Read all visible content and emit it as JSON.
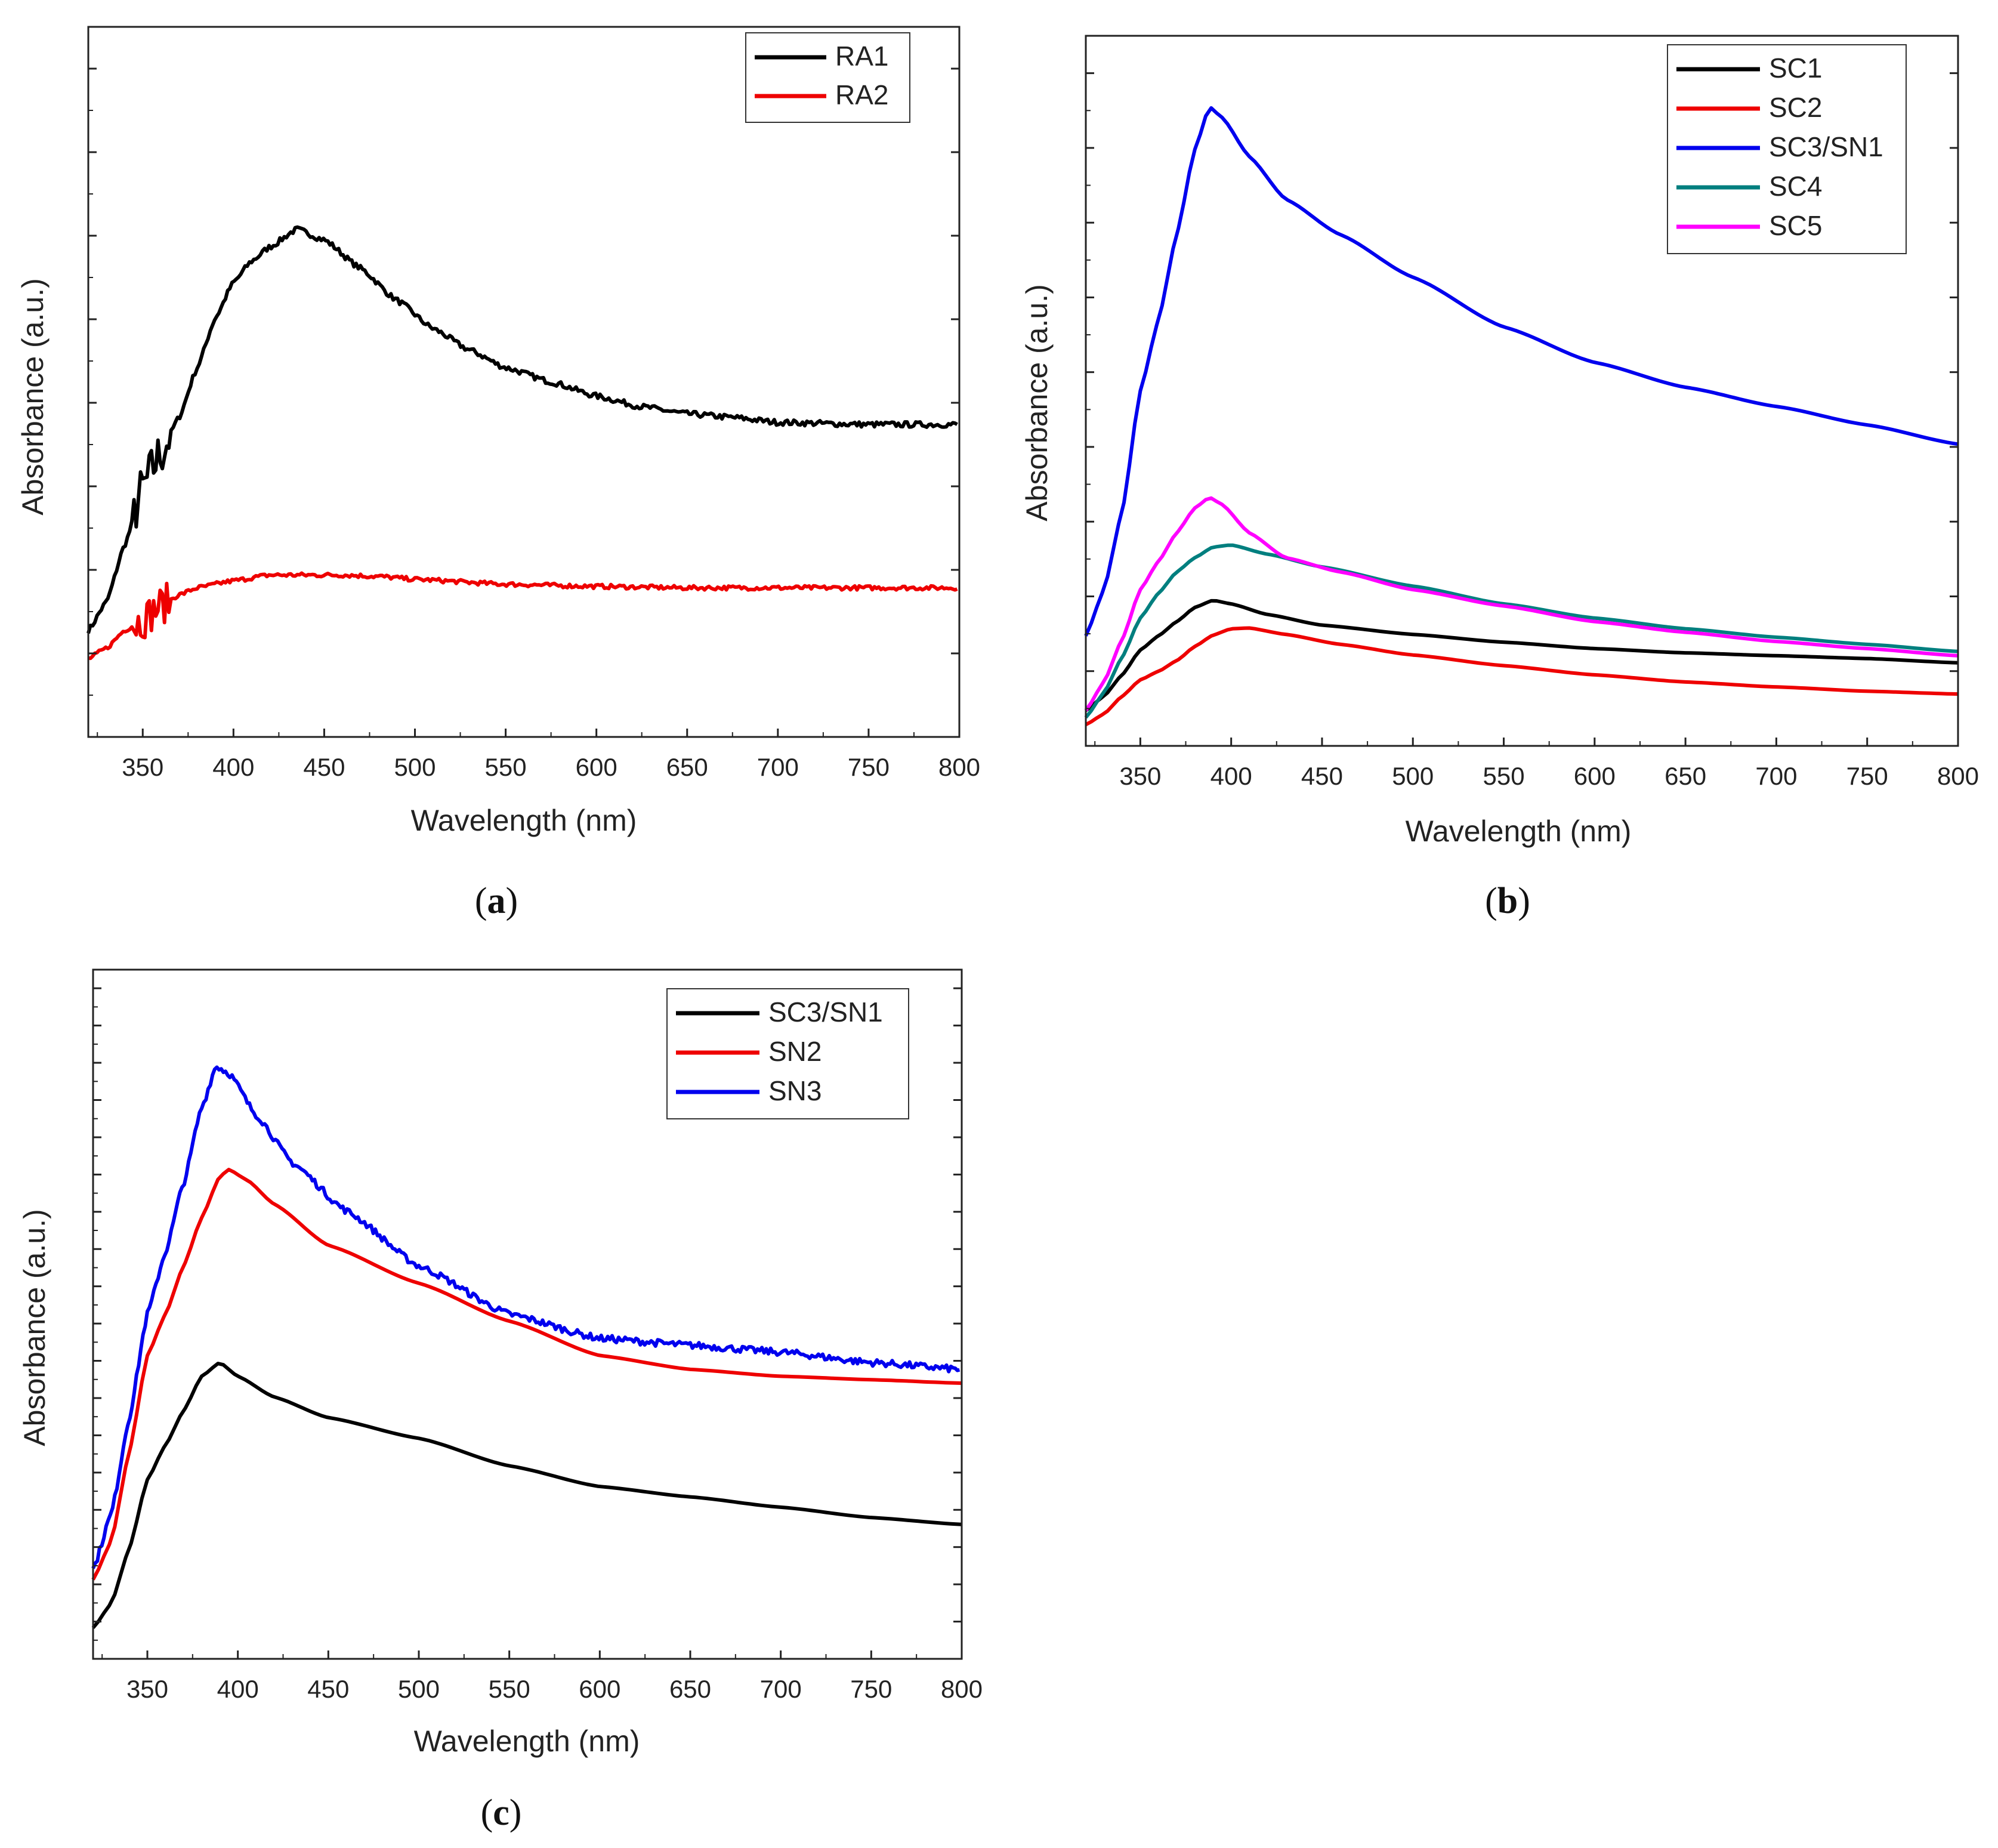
{
  "chart_data": [
    {
      "id": "a",
      "type": "line",
      "panel_label": "a",
      "xlabel": "Wavelength (nm)",
      "ylabel": "Absorbance (a.u.)",
      "xlim": [
        320,
        800
      ],
      "ylim": [
        0,
        1
      ],
      "xticks": [
        350,
        400,
        450,
        500,
        550,
        600,
        650,
        700,
        750,
        800
      ],
      "yticks_count": 8,
      "y_tick_labels_shown": false,
      "legend_position": "top-right",
      "series": [
        {
          "name": "RA1",
          "color": "#000000",
          "noise": 0.004,
          "points": [
            [
              320,
              0.15
            ],
            [
              330,
              0.19
            ],
            [
              340,
              0.27
            ],
            [
              350,
              0.35
            ],
            [
              360,
              0.4
            ],
            [
              370,
              0.45
            ],
            [
              380,
              0.52
            ],
            [
              390,
              0.59
            ],
            [
              400,
              0.64
            ],
            [
              410,
              0.67
            ],
            [
              420,
              0.69
            ],
            [
              435,
              0.715
            ],
            [
              450,
              0.7
            ],
            [
              470,
              0.66
            ],
            [
              490,
              0.615
            ],
            [
              510,
              0.575
            ],
            [
              530,
              0.545
            ],
            [
              550,
              0.52
            ],
            [
              575,
              0.5
            ],
            [
              600,
              0.48
            ],
            [
              625,
              0.465
            ],
            [
              650,
              0.455
            ],
            [
              675,
              0.45
            ],
            [
              700,
              0.443
            ],
            [
              750,
              0.44
            ],
            [
              800,
              0.44
            ]
          ]
        },
        {
          "name": "RA2",
          "color": "#ee0000",
          "noise": 0.003,
          "points": [
            [
              320,
              0.11
            ],
            [
              330,
              0.125
            ],
            [
              340,
              0.15
            ],
            [
              350,
              0.165
            ],
            [
              360,
              0.185
            ],
            [
              370,
              0.2
            ],
            [
              380,
              0.21
            ],
            [
              400,
              0.22
            ],
            [
              420,
              0.228
            ],
            [
              440,
              0.228
            ],
            [
              460,
              0.228
            ],
            [
              480,
              0.226
            ],
            [
              500,
              0.222
            ],
            [
              550,
              0.215
            ],
            [
              600,
              0.212
            ],
            [
              650,
              0.21
            ],
            [
              700,
              0.21
            ],
            [
              750,
              0.21
            ],
            [
              800,
              0.21
            ]
          ]
        }
      ]
    },
    {
      "id": "b",
      "type": "line",
      "panel_label": "b",
      "xlabel": "Wavelength (nm)",
      "ylabel": "Absorbance (a.u.)",
      "xlim": [
        320,
        800
      ],
      "ylim": [
        0,
        1
      ],
      "xticks": [
        350,
        400,
        450,
        500,
        550,
        600,
        650,
        700,
        750,
        800
      ],
      "yticks_count": 9,
      "y_tick_labels_shown": false,
      "legend_position": "top-right",
      "series": [
        {
          "name": "SC1",
          "color": "#000000",
          "noise": 0,
          "points": [
            [
              320,
              0.05
            ],
            [
              330,
              0.07
            ],
            [
              340,
              0.1
            ],
            [
              350,
              0.135
            ],
            [
              360,
              0.155
            ],
            [
              370,
              0.175
            ],
            [
              380,
              0.195
            ],
            [
              390,
              0.205
            ],
            [
              400,
              0.2
            ],
            [
              420,
              0.185
            ],
            [
              450,
              0.17
            ],
            [
              500,
              0.157
            ],
            [
              550,
              0.146
            ],
            [
              600,
              0.137
            ],
            [
              650,
              0.131
            ],
            [
              700,
              0.127
            ],
            [
              750,
              0.123
            ],
            [
              800,
              0.117
            ]
          ]
        },
        {
          "name": "SC2",
          "color": "#ee0000",
          "noise": 0,
          "points": [
            [
              320,
              0.03
            ],
            [
              330,
              0.045
            ],
            [
              340,
              0.07
            ],
            [
              350,
              0.093
            ],
            [
              360,
              0.105
            ],
            [
              370,
              0.12
            ],
            [
              380,
              0.14
            ],
            [
              390,
              0.156
            ],
            [
              400,
              0.165
            ],
            [
              410,
              0.166
            ],
            [
              430,
              0.157
            ],
            [
              460,
              0.143
            ],
            [
              500,
              0.128
            ],
            [
              550,
              0.113
            ],
            [
              600,
              0.1
            ],
            [
              650,
              0.09
            ],
            [
              700,
              0.083
            ],
            [
              750,
              0.077
            ],
            [
              800,
              0.073
            ]
          ]
        },
        {
          "name": "SC3/SN1",
          "color": "#0000ee",
          "noise": 0,
          "points": [
            [
              320,
              0.155
            ],
            [
              330,
              0.22
            ],
            [
              340,
              0.33
            ],
            [
              350,
              0.5
            ],
            [
              360,
              0.6
            ],
            [
              370,
              0.72
            ],
            [
              380,
              0.84
            ],
            [
              388,
              0.9
            ],
            [
              395,
              0.885
            ],
            [
              410,
              0.83
            ],
            [
              430,
              0.77
            ],
            [
              460,
              0.72
            ],
            [
              500,
              0.66
            ],
            [
              550,
              0.59
            ],
            [
              600,
              0.54
            ],
            [
              650,
              0.505
            ],
            [
              700,
              0.478
            ],
            [
              750,
              0.452
            ],
            [
              800,
              0.425
            ]
          ]
        },
        {
          "name": "SC4",
          "color": "#007f7f",
          "noise": 0,
          "points": [
            [
              320,
              0.04
            ],
            [
              330,
              0.075
            ],
            [
              340,
              0.125
            ],
            [
              350,
              0.18
            ],
            [
              360,
              0.215
            ],
            [
              370,
              0.245
            ],
            [
              380,
              0.265
            ],
            [
              390,
              0.28
            ],
            [
              400,
              0.283
            ],
            [
              420,
              0.27
            ],
            [
              450,
              0.252
            ],
            [
              500,
              0.225
            ],
            [
              550,
              0.2
            ],
            [
              600,
              0.18
            ],
            [
              650,
              0.165
            ],
            [
              700,
              0.153
            ],
            [
              750,
              0.143
            ],
            [
              800,
              0.133
            ]
          ]
        },
        {
          "name": "SC5",
          "color": "#ff00ff",
          "noise": 0,
          "points": [
            [
              320,
              0.05
            ],
            [
              330,
              0.09
            ],
            [
              340,
              0.15
            ],
            [
              350,
              0.22
            ],
            [
              360,
              0.26
            ],
            [
              370,
              0.3
            ],
            [
              380,
              0.335
            ],
            [
              388,
              0.35
            ],
            [
              395,
              0.34
            ],
            [
              410,
              0.3
            ],
            [
              430,
              0.265
            ],
            [
              460,
              0.245
            ],
            [
              500,
              0.22
            ],
            [
              550,
              0.197
            ],
            [
              600,
              0.175
            ],
            [
              650,
              0.16
            ],
            [
              700,
              0.147
            ],
            [
              750,
              0.137
            ],
            [
              800,
              0.127
            ]
          ]
        }
      ]
    },
    {
      "id": "c",
      "type": "line",
      "panel_label": "c",
      "xlabel": "Wavelength (nm)",
      "ylabel": "Absorbance (a.u.)",
      "xlim": [
        320,
        800
      ],
      "ylim": [
        0,
        1
      ],
      "xticks": [
        350,
        400,
        450,
        500,
        550,
        600,
        650,
        700,
        750,
        800
      ],
      "yticks_count": 18,
      "y_tick_labels_shown": false,
      "legend_position": "top-right",
      "series": [
        {
          "name": "SC3/SN1",
          "color": "#000000",
          "noise": 0,
          "points": [
            [
              320,
              0.045
            ],
            [
              330,
              0.08
            ],
            [
              340,
              0.16
            ],
            [
              350,
              0.26
            ],
            [
              360,
              0.31
            ],
            [
              370,
              0.36
            ],
            [
              380,
              0.41
            ],
            [
              390,
              0.43
            ],
            [
              400,
              0.41
            ],
            [
              420,
              0.38
            ],
            [
              450,
              0.35
            ],
            [
              500,
              0.32
            ],
            [
              550,
              0.28
            ],
            [
              600,
              0.25
            ],
            [
              650,
              0.235
            ],
            [
              700,
              0.22
            ],
            [
              750,
              0.205
            ],
            [
              800,
              0.195
            ]
          ]
        },
        {
          "name": "SN2",
          "color": "#ee0000",
          "noise": 0,
          "points": [
            [
              320,
              0.115
            ],
            [
              330,
              0.17
            ],
            [
              340,
              0.3
            ],
            [
              350,
              0.44
            ],
            [
              360,
              0.5
            ],
            [
              370,
              0.57
            ],
            [
              380,
              0.64
            ],
            [
              390,
              0.7
            ],
            [
              395,
              0.71
            ],
            [
              405,
              0.695
            ],
            [
              420,
              0.66
            ],
            [
              450,
              0.6
            ],
            [
              500,
              0.545
            ],
            [
              550,
              0.49
            ],
            [
              600,
              0.44
            ],
            [
              650,
              0.42
            ],
            [
              700,
              0.41
            ],
            [
              750,
              0.405
            ],
            [
              800,
              0.4
            ]
          ]
        },
        {
          "name": "SN3",
          "color": "#0000ee",
          "noise": 0.005,
          "points": [
            [
              320,
              0.13
            ],
            [
              330,
              0.21
            ],
            [
              340,
              0.35
            ],
            [
              350,
              0.5
            ],
            [
              360,
              0.59
            ],
            [
              370,
              0.69
            ],
            [
              380,
              0.8
            ],
            [
              388,
              0.86
            ],
            [
              395,
              0.85
            ],
            [
              410,
              0.79
            ],
            [
              430,
              0.72
            ],
            [
              460,
              0.65
            ],
            [
              500,
              0.57
            ],
            [
              550,
              0.5
            ],
            [
              600,
              0.465
            ],
            [
              650,
              0.455
            ],
            [
              700,
              0.445
            ],
            [
              750,
              0.43
            ],
            [
              800,
              0.42
            ]
          ]
        }
      ]
    }
  ],
  "panel_letters": [
    "a",
    "b",
    "c"
  ],
  "open_paren": "(",
  "close_paren": ")"
}
